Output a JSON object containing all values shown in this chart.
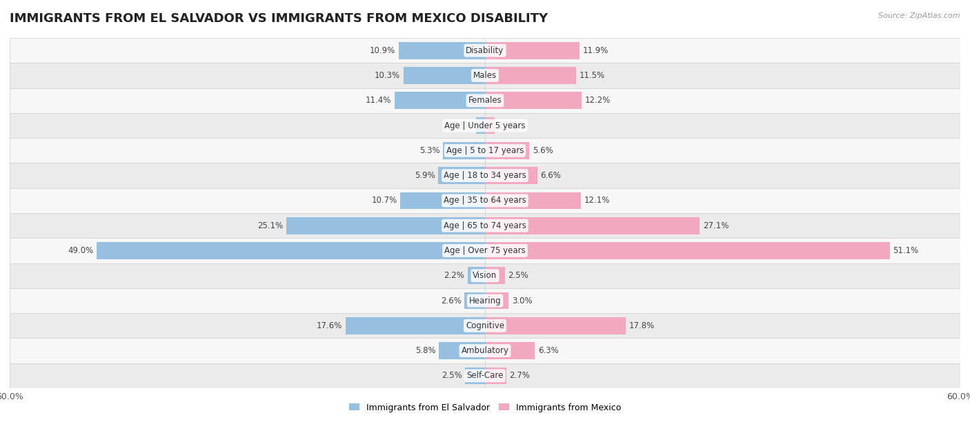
{
  "title": "IMMIGRANTS FROM EL SALVADOR VS IMMIGRANTS FROM MEXICO DISABILITY",
  "source": "Source: ZipAtlas.com",
  "categories": [
    "Disability",
    "Males",
    "Females",
    "Age | Under 5 years",
    "Age | 5 to 17 years",
    "Age | 18 to 34 years",
    "Age | 35 to 64 years",
    "Age | 65 to 74 years",
    "Age | Over 75 years",
    "Vision",
    "Hearing",
    "Cognitive",
    "Ambulatory",
    "Self-Care"
  ],
  "el_salvador": [
    10.9,
    10.3,
    11.4,
    1.1,
    5.3,
    5.9,
    10.7,
    25.1,
    49.0,
    2.2,
    2.6,
    17.6,
    5.8,
    2.5
  ],
  "mexico": [
    11.9,
    11.5,
    12.2,
    1.2,
    5.6,
    6.6,
    12.1,
    27.1,
    51.1,
    2.5,
    3.0,
    17.8,
    6.3,
    2.7
  ],
  "el_salvador_color": "#96BFE0",
  "mexico_color": "#F2A8BF",
  "el_salvador_label": "Immigrants from El Salvador",
  "mexico_label": "Immigrants from Mexico",
  "axis_limit": 60.0,
  "bg_color": "#ffffff",
  "row_bg_light": "#f7f7f7",
  "row_bg_dark": "#ebebeb",
  "title_fontsize": 13,
  "label_fontsize": 8.5,
  "bar_height": 0.68
}
